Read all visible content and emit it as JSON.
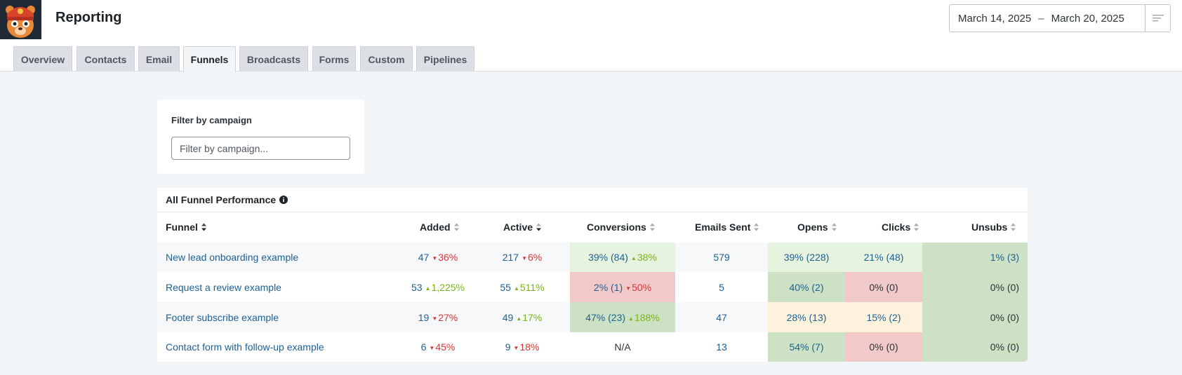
{
  "header": {
    "title": "Reporting",
    "date_start": "March 14, 2025",
    "date_separator": "–",
    "date_end": "March 20, 2025"
  },
  "tabs": [
    {
      "label": "Overview",
      "active": false
    },
    {
      "label": "Contacts",
      "active": false
    },
    {
      "label": "Email",
      "active": false
    },
    {
      "label": "Funnels",
      "active": true
    },
    {
      "label": "Broadcasts",
      "active": false
    },
    {
      "label": "Forms",
      "active": false
    },
    {
      "label": "Custom",
      "active": false
    },
    {
      "label": "Pipelines",
      "active": false
    }
  ],
  "filter": {
    "label": "Filter by campaign",
    "placeholder": "Filter by campaign..."
  },
  "performance": {
    "title": "All Funnel Performance",
    "columns": [
      "Funnel",
      "Added",
      "Active",
      "Conversions",
      "Emails Sent",
      "Opens",
      "Clicks",
      "Unsubs"
    ],
    "rows": [
      {
        "funnel": "New lead onboarding example",
        "added": {
          "value": "47",
          "delta": "36%",
          "dir": "down"
        },
        "active": {
          "value": "217",
          "delta": "6%",
          "dir": "down"
        },
        "conversions": {
          "value": "39% (84)",
          "delta": "38%",
          "dir": "up",
          "tone": "light-green"
        },
        "emails_sent": "579",
        "opens": {
          "value": "39% (228)",
          "tone": "light-green"
        },
        "clicks": {
          "value": "21% (48)",
          "tone": "light-green"
        },
        "unsubs": {
          "value": "1% (3)",
          "tone": "green"
        }
      },
      {
        "funnel": "Request a review example",
        "added": {
          "value": "53",
          "delta": "1,225%",
          "dir": "up"
        },
        "active": {
          "value": "55",
          "delta": "511%",
          "dir": "up"
        },
        "conversions": {
          "value": "2% (1)",
          "delta": "50%",
          "dir": "down",
          "tone": "red"
        },
        "emails_sent": "5",
        "opens": {
          "value": "40% (2)",
          "tone": "green"
        },
        "clicks": {
          "value": "0% (0)",
          "tone": "red"
        },
        "unsubs": {
          "value": "0% (0)",
          "tone": "green"
        }
      },
      {
        "funnel": "Footer subscribe example",
        "added": {
          "value": "19",
          "delta": "27%",
          "dir": "down"
        },
        "active": {
          "value": "49",
          "delta": "17%",
          "dir": "up"
        },
        "conversions": {
          "value": "47% (23)",
          "delta": "188%",
          "dir": "up",
          "tone": "green"
        },
        "emails_sent": "47",
        "opens": {
          "value": "28% (13)",
          "tone": "yellow"
        },
        "clicks": {
          "value": "15% (2)",
          "tone": "yellow"
        },
        "unsubs": {
          "value": "0% (0)",
          "tone": "green"
        }
      },
      {
        "funnel": "Contact form with follow-up example",
        "added": {
          "value": "6",
          "delta": "45%",
          "dir": "down"
        },
        "active": {
          "value": "9",
          "delta": "18%",
          "dir": "down"
        },
        "conversions": {
          "value": "N/A",
          "delta": "",
          "dir": "",
          "tone": "none"
        },
        "emails_sent": "13",
        "opens": {
          "value": "54% (7)",
          "tone": "green"
        },
        "clicks": {
          "value": "0% (0)",
          "tone": "red"
        },
        "unsubs": {
          "value": "0% (0)",
          "tone": "green"
        }
      }
    ]
  },
  "colors": {
    "link": "#1e5f93",
    "up": "#7ab317",
    "down": "#d63638",
    "tone_green": "#cde2c4",
    "tone_light_green": "#e6f3de",
    "tone_red": "#f2c9c9",
    "tone_yellow": "#fdf3dc",
    "row_stripe": "#f6f8fa"
  },
  "icons": {
    "logo": "groundhogg-mascot-logo",
    "date_menu": "lines-menu-icon",
    "info": "info-circle-icon",
    "sort": "sort-arrows-icon"
  }
}
